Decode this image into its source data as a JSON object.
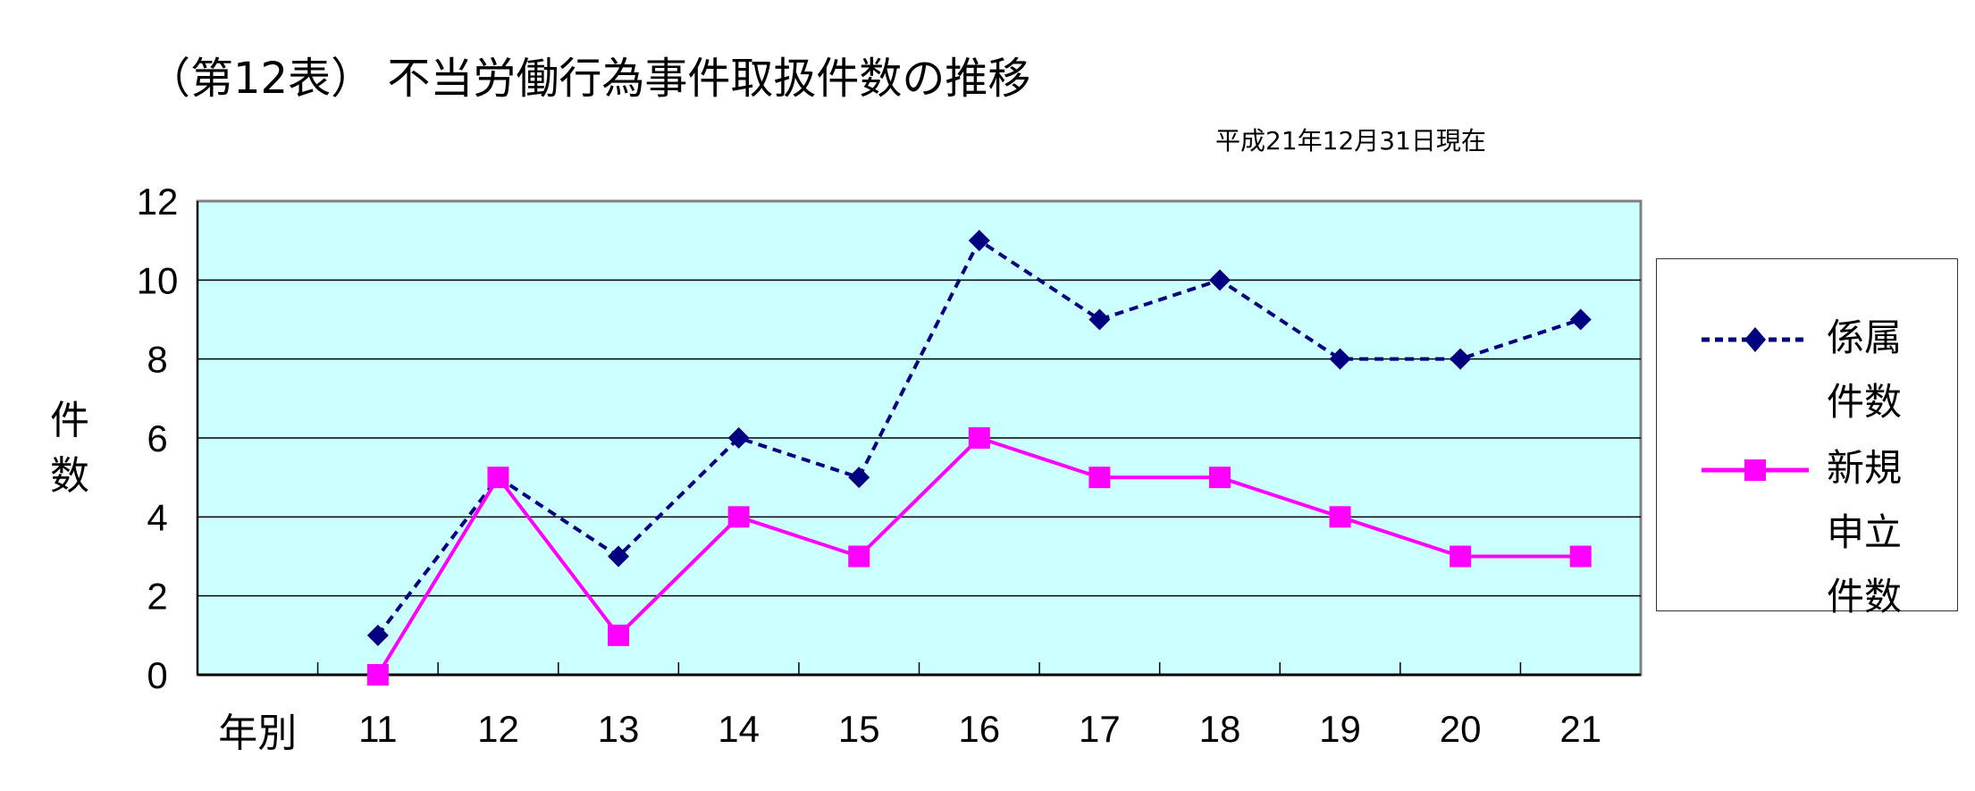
{
  "chart_data": {
    "type": "line",
    "title": "（第12表） 不当労働行為事件取扱件数の推移",
    "subtitle": "平成21年12月31日現在",
    "ylabel": "件数",
    "xlabel": "年別",
    "categories": [
      "11",
      "12",
      "13",
      "14",
      "15",
      "16",
      "17",
      "18",
      "19",
      "20",
      "21"
    ],
    "ylim": [
      0,
      12
    ],
    "yticks": [
      "0",
      "2",
      "4",
      "6",
      "8",
      "10",
      "12"
    ],
    "grid": true,
    "plot_background": "#ccffff",
    "legend_placement": "right",
    "series": [
      {
        "name": "係属件数",
        "values": [
          1,
          5,
          3,
          6,
          5,
          11,
          9,
          10,
          8,
          8,
          9
        ],
        "color": "#000080",
        "line": "dashed",
        "marker": "diamond"
      },
      {
        "name": "新規申立件数",
        "values": [
          0,
          5,
          1,
          4,
          3,
          6,
          5,
          5,
          4,
          3,
          3
        ],
        "color": "#ff00ff",
        "line": "solid",
        "marker": "square"
      }
    ]
  }
}
